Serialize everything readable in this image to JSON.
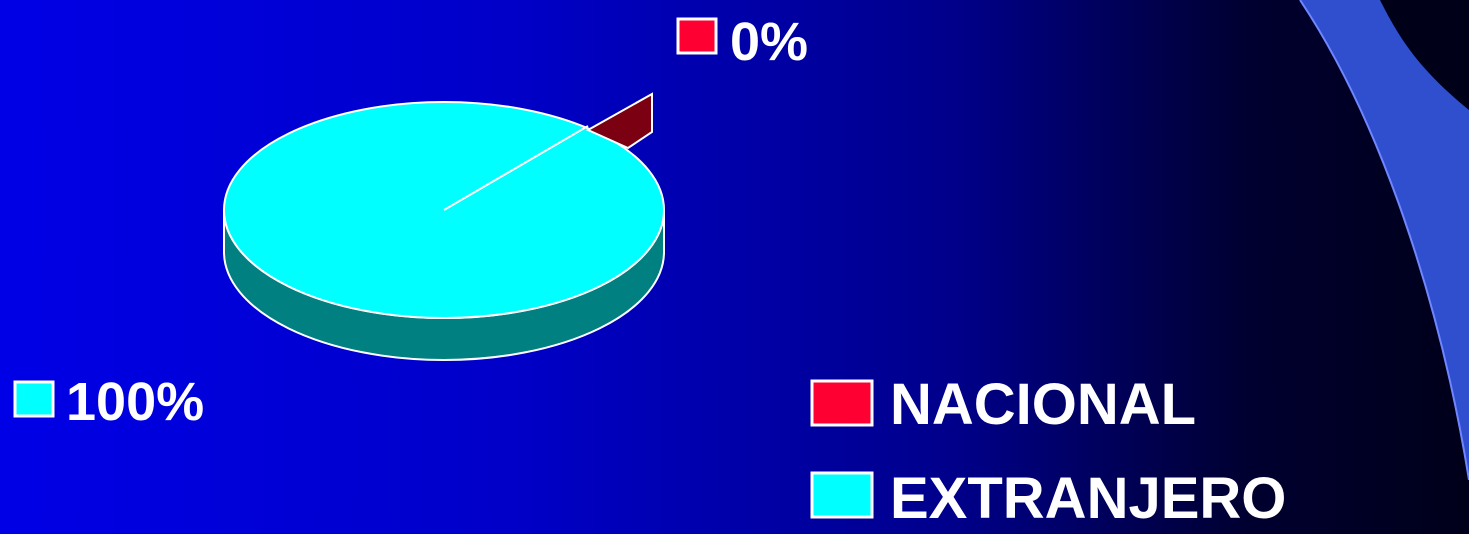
{
  "chart_data": {
    "type": "pie",
    "style": "3d-exploded",
    "categories": [
      "NACIONAL",
      "EXTRANJERO"
    ],
    "values": [
      0,
      100
    ],
    "data_labels": [
      "0%",
      "100%"
    ],
    "colors": {
      "NACIONAL": "#ff0033",
      "EXTRANJERO": "#00ffff"
    },
    "legend_position": "bottom-right"
  },
  "theme": {
    "background_start": "#0000e6",
    "background_end": "#00001a",
    "accent_swoosh": "#3050d0",
    "label_color": "#ffffff"
  }
}
